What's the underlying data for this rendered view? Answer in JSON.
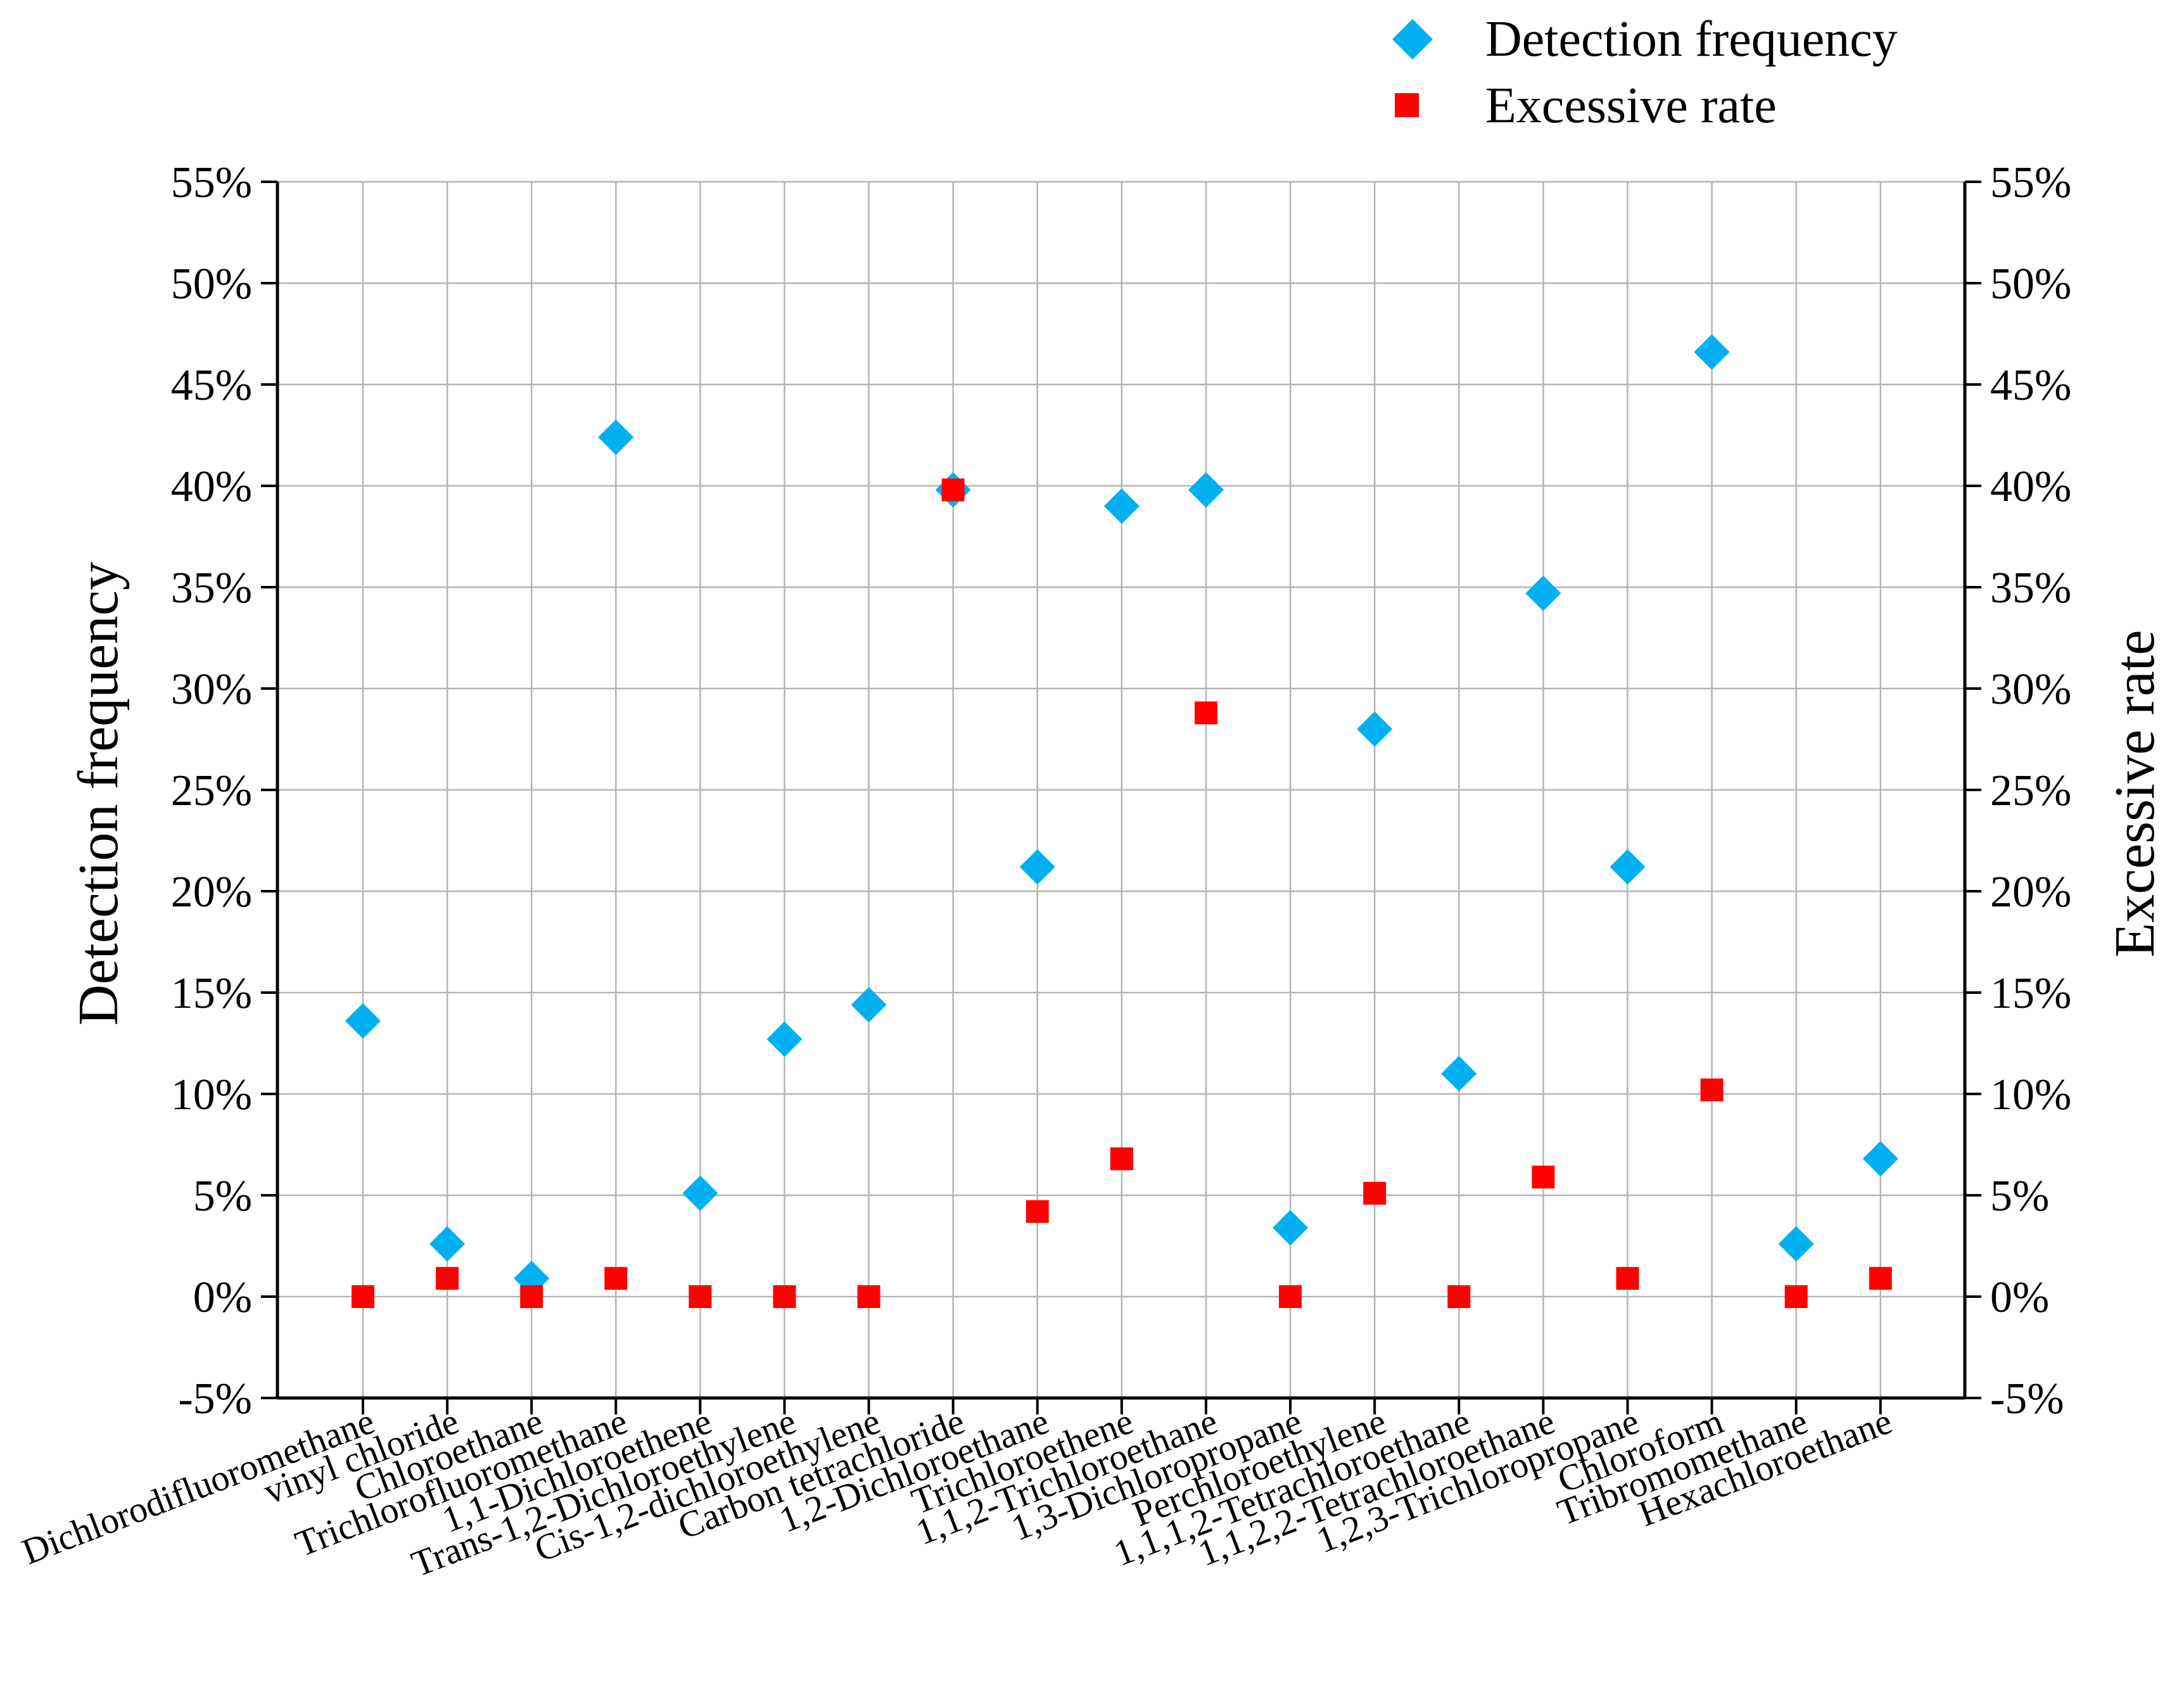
{
  "chart_data": {
    "type": "scatter",
    "title": "",
    "xlabel": "",
    "ylabel": "Detection frequency",
    "y2label": "Excessive rate",
    "ylim": [
      -5,
      55
    ],
    "y2lim": [
      -5,
      55
    ],
    "grid": true,
    "legend_position": "top-right",
    "categories": [
      "Dichlorodifluoromethane",
      "vinyl chloride",
      "Chloroethane",
      "Trichlorofluoromethane",
      "1,1-Dichloroethene",
      "Trans-1,2-Dichloroethylene",
      "Cis-1,2-dichloroethylene",
      "Carbon tetrachloride",
      "1,2-Dichloroethane",
      "Trichloroethene",
      "1,1,2-Trichloroethane",
      "1,3-Dichloropropane",
      "Perchloroethylene",
      "1,1,1,2-Tetrachloroethane",
      "1,1,2,2-Tetrachloroethane",
      "1,2,3-Trichloropropane",
      "Chloroform",
      "Tribromomethane",
      "Hexachloroethane"
    ],
    "y_ticks": [
      "-5%",
      "0%",
      "5%",
      "10%",
      "15%",
      "20%",
      "25%",
      "30%",
      "35%",
      "40%",
      "45%",
      "50%",
      "55%"
    ],
    "y_tick_values": [
      -5,
      0,
      5,
      10,
      15,
      20,
      25,
      30,
      35,
      40,
      45,
      50,
      55
    ],
    "series": [
      {
        "name": "Detection frequency",
        "marker": "diamond",
        "color": "#00b0f0",
        "values": [
          13.6,
          2.6,
          0.9,
          42.4,
          5.1,
          12.7,
          14.4,
          39.8,
          21.2,
          39.0,
          39.8,
          3.4,
          28.0,
          11.0,
          34.7,
          21.2,
          46.6,
          2.6,
          6.8
        ]
      },
      {
        "name": "Excessive rate",
        "marker": "square",
        "color": "#ff0000",
        "values": [
          0.0,
          0.9,
          0.0,
          0.9,
          0.0,
          0.0,
          0.0,
          39.8,
          4.2,
          6.8,
          28.8,
          0.0,
          5.1,
          0.0,
          5.9,
          0.9,
          10.2,
          0.0,
          0.9
        ]
      }
    ]
  }
}
